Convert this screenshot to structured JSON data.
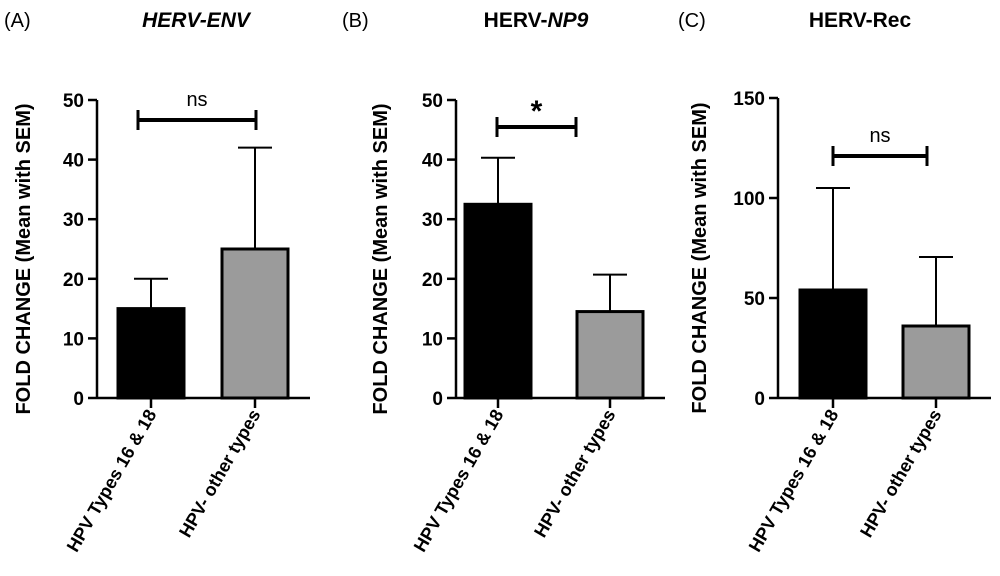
{
  "panels": [
    {
      "label": "(A)",
      "title_parts": [
        {
          "text": "HERV-ENV",
          "italic": true
        }
      ],
      "ylabel": "FOLD CHANGE (Mean with SEM)",
      "significance": "ns"
    },
    {
      "label": "(B)",
      "title_parts": [
        {
          "text": "HERV-",
          "italic": false
        },
        {
          "text": "NP9",
          "italic": true
        }
      ],
      "ylabel": "FOLD CHANGE (Mean with SEM)",
      "significance": "*"
    },
    {
      "label": "(C)",
      "title_parts": [
        {
          "text": "HERV-Rec",
          "italic": false
        }
      ],
      "ylabel": "FOLD CHANGE (Mean with SEM)",
      "significance": "ns"
    }
  ],
  "chart_data": [
    {
      "type": "bar",
      "title": "HERV-ENV",
      "ylabel": "FOLD CHANGE (Mean with SEM)",
      "categories": [
        "HPV Types 16 & 18",
        "HPV- other types"
      ],
      "values": [
        15,
        25
      ],
      "error_upper": [
        20,
        42
      ],
      "bar_colors": [
        "#000000",
        "#9b9b9b"
      ],
      "ylim": [
        0,
        50
      ],
      "yticks": [
        0,
        10,
        20,
        30,
        40,
        50
      ],
      "grid": false
    },
    {
      "type": "bar",
      "title": "HERV-NP9",
      "ylabel": "FOLD CHANGE (Mean with SEM)",
      "categories": [
        "HPV Types 16 & 18",
        "HPV- other types"
      ],
      "values": [
        32.5,
        14.5
      ],
      "error_upper": [
        40.3,
        20.7
      ],
      "bar_colors": [
        "#000000",
        "#9b9b9b"
      ],
      "ylim": [
        0,
        50
      ],
      "yticks": [
        0,
        10,
        20,
        30,
        40,
        50
      ],
      "grid": false
    },
    {
      "type": "bar",
      "title": "HERV-Rec",
      "ylabel": "FOLD CHANGE (Mean with SEM)",
      "categories": [
        "HPV Types 16 & 18",
        "HPV- other types"
      ],
      "values": [
        54,
        36
      ],
      "error_upper": [
        105,
        70.5
      ],
      "bar_colors": [
        "#000000",
        "#9b9b9b"
      ],
      "ylim": [
        0,
        150
      ],
      "yticks": [
        0,
        50,
        100,
        150
      ],
      "grid": false
    }
  ]
}
